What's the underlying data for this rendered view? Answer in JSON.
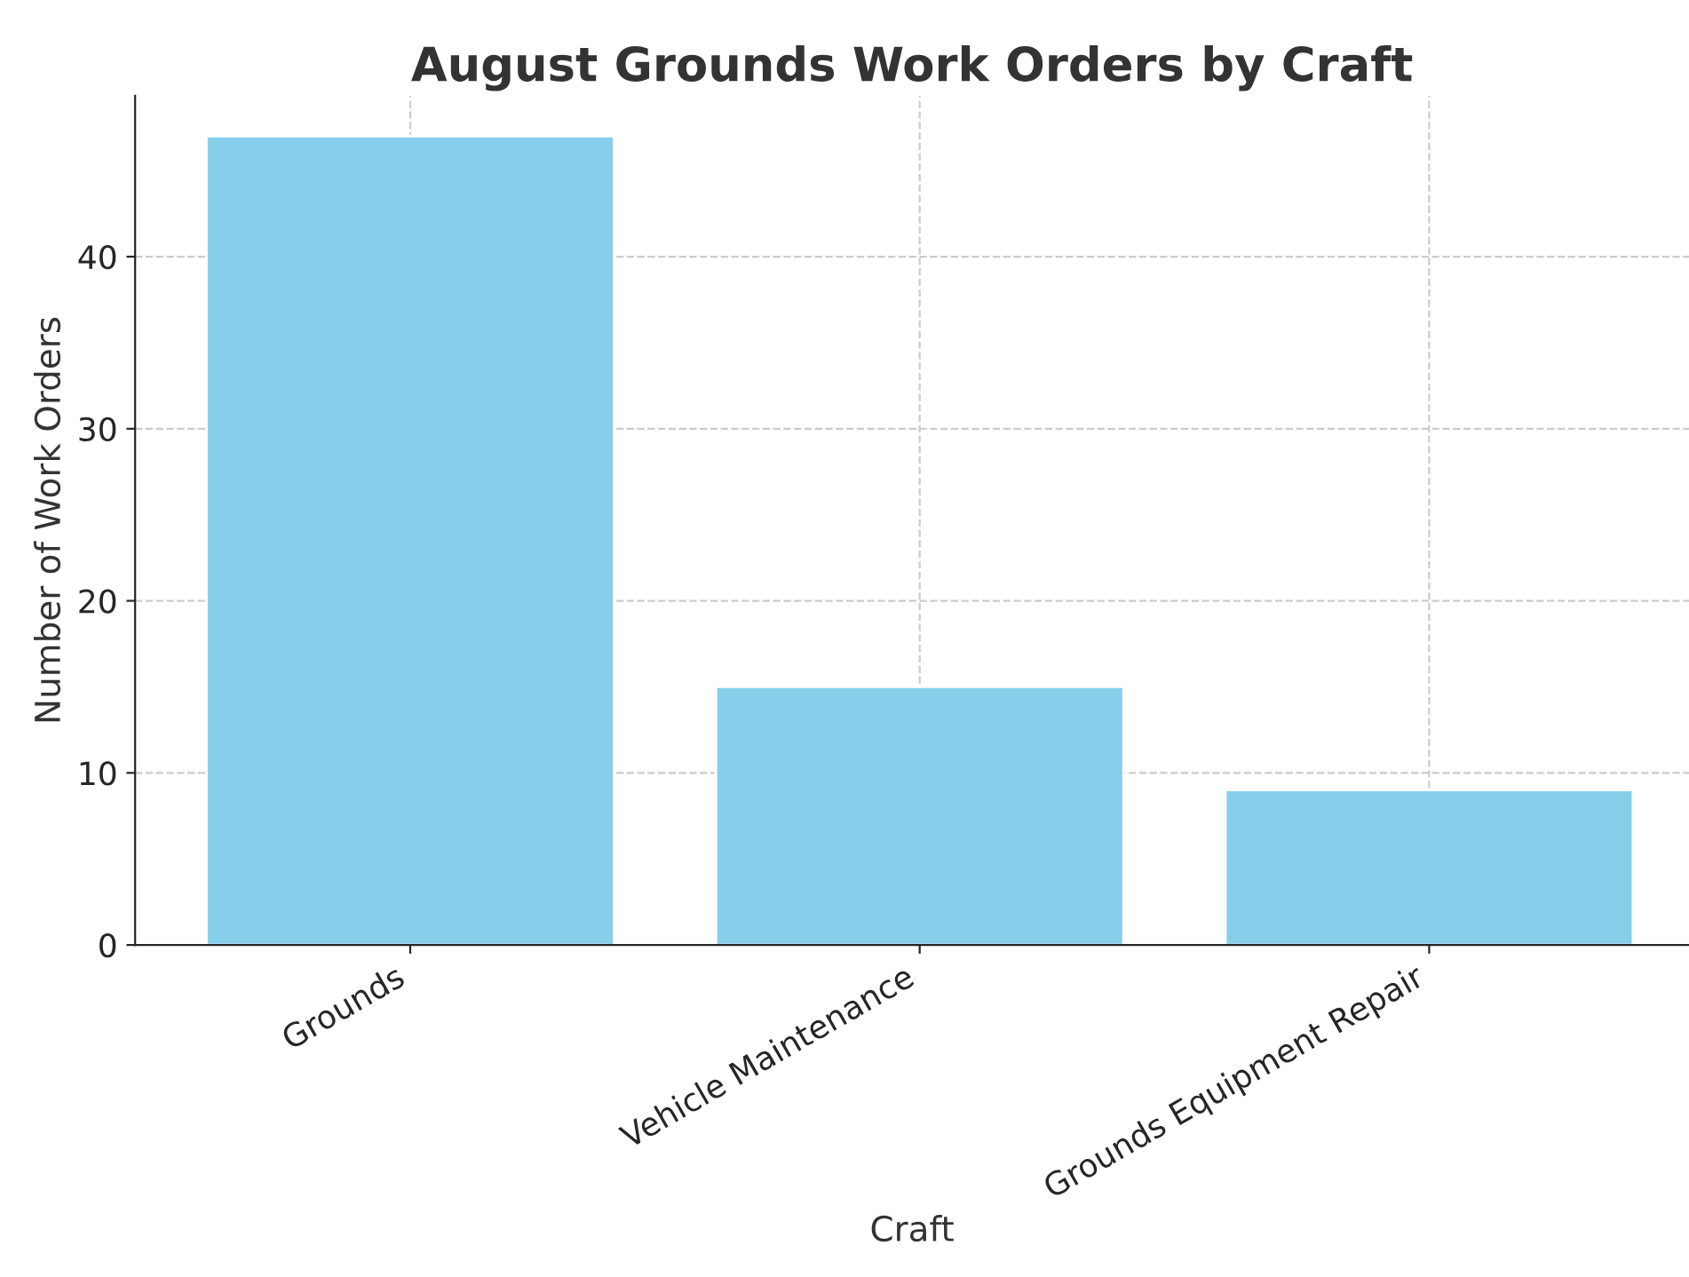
{
  "chart_data": {
    "type": "bar",
    "title": "August Grounds Work Orders by Craft",
    "xlabel": "Craft",
    "ylabel": "Number of Work Orders",
    "categories": [
      "Grounds",
      "Vehicle Maintenance",
      "Grounds Equipment Repair"
    ],
    "values": [
      47,
      15,
      9
    ],
    "color": "#87ceeb",
    "ylim": [
      0,
      49.35
    ],
    "yticks": [
      0,
      10,
      20,
      30,
      40
    ],
    "grid": true
  }
}
